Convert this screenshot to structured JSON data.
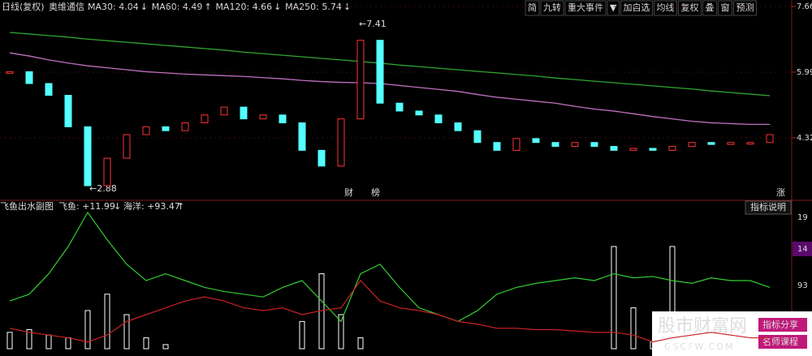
{
  "header": {
    "period": "日线(复权)",
    "stock": "奥维通信",
    "indicators": [
      {
        "text": "MA30: 4.04",
        "arrow": "↓",
        "color": "#ffffff",
        "arrow_color": "#4aa3ff"
      },
      {
        "text": "MA60: 4.49",
        "arrow": "↑",
        "color": "#ffff00",
        "arrow_color": "#ff3333"
      },
      {
        "text": "MA120: 4.66",
        "arrow": "↓",
        "color": "#ff66ff",
        "arrow_color": "#4aa3ff"
      },
      {
        "text": "MA250: 5.74",
        "arrow": "↓",
        "color": "#33cc33",
        "arrow_color": "#4aa3ff"
      }
    ]
  },
  "toolbar": [
    "简",
    "九转",
    "重大事件",
    "▼",
    "加自选",
    "均线",
    "复权",
    "叠",
    "窗",
    "预测"
  ],
  "sub_header": {
    "title": "飞鱼出水副图",
    "fish": "飞鱼: +11.99",
    "fish_arrow": "↓",
    "ocean": "海洋: +93.47",
    "ocean_arrow": "↑",
    "help": "指标说明"
  },
  "sub_axis_labels": [
    "19",
    "14",
    "93"
  ],
  "annotations": {
    "high": "←7.41",
    "low": "←2.88",
    "cai": "财",
    "bang": "榜",
    "zhang": "涨"
  },
  "watermark": {
    "site": "股市财富网",
    "url": "GSCFW.COM",
    "share": "指标分享",
    "course": "名师课程"
  },
  "chart_data": [
    {
      "type": "candlestick",
      "ylim": [
        2.77,
        7.66
      ],
      "yticks": [
        7.66,
        5.99,
        4.32
      ],
      "up_color": "#ff3333",
      "down_color": "#54ffff",
      "values": [
        6.0,
        5.7,
        5.4,
        4.6,
        3.1,
        3.8,
        4.4,
        4.6,
        4.5,
        4.7,
        4.9,
        5.1,
        4.8,
        4.9,
        4.7,
        4.0,
        3.6,
        4.8,
        6.8,
        5.2,
        5.0,
        4.9,
        4.7,
        4.5,
        4.2,
        4.0,
        4.3,
        4.2,
        4.1,
        4.2,
        4.1,
        4.0,
        4.05,
        4.0,
        4.1,
        4.2,
        4.15,
        4.2,
        4.2,
        4.4
      ],
      "series": [
        {
          "color": "#2fa62f",
          "values": [
            7.0,
            6.96,
            6.92,
            6.88,
            6.83,
            6.79,
            6.75,
            6.71,
            6.67,
            6.63,
            6.59,
            6.55,
            6.5,
            6.46,
            6.42,
            6.38,
            6.34,
            6.3,
            6.26,
            6.22,
            6.17,
            6.13,
            6.09,
            6.05,
            6.01,
            5.97,
            5.93,
            5.89,
            5.84,
            5.8,
            5.76,
            5.72,
            5.68,
            5.64,
            5.6,
            5.56,
            5.51,
            5.47,
            5.43,
            5.39
          ]
        },
        {
          "color": "#c070c0",
          "values": [
            6.48,
            6.4,
            6.3,
            6.22,
            6.15,
            6.1,
            6.05,
            6.0,
            5.97,
            5.94,
            5.92,
            5.9,
            5.88,
            5.85,
            5.82,
            5.78,
            5.75,
            5.73,
            5.72,
            5.7,
            5.65,
            5.6,
            5.55,
            5.5,
            5.42,
            5.35,
            5.3,
            5.25,
            5.2,
            5.12,
            5.05,
            5.0,
            4.93,
            4.86,
            4.8,
            4.74,
            4.7,
            4.68,
            4.66,
            4.66
          ]
        }
      ]
    },
    {
      "type": "line",
      "ylim": [
        0,
        100
      ],
      "bar_color": "#ffffff",
      "bars": [
        12,
        14,
        10,
        8,
        28,
        40,
        25,
        8,
        3,
        0,
        0,
        0,
        0,
        0,
        0,
        20,
        55,
        25,
        8,
        0,
        0,
        0,
        0,
        0,
        0,
        0,
        0,
        0,
        0,
        0,
        0,
        75,
        30,
        5,
        75,
        10,
        0,
        0,
        0,
        0
      ],
      "series": [
        {
          "color": "#33cc33",
          "values": [
            35,
            40,
            55,
            75,
            100,
            80,
            62,
            50,
            55,
            50,
            45,
            42,
            40,
            38,
            45,
            50,
            35,
            20,
            55,
            62,
            45,
            30,
            25,
            20,
            28,
            40,
            45,
            48,
            50,
            52,
            50,
            55,
            52,
            53,
            50,
            48,
            52,
            50,
            50,
            45
          ]
        },
        {
          "color": "#cc2222",
          "values": [
            15,
            12,
            10,
            8,
            5,
            10,
            20,
            25,
            30,
            35,
            38,
            35,
            30,
            28,
            30,
            25,
            28,
            30,
            50,
            35,
            30,
            28,
            25,
            20,
            18,
            15,
            15,
            14,
            14,
            13,
            12,
            12,
            10,
            5,
            8,
            10,
            12,
            10,
            8,
            8
          ]
        }
      ]
    }
  ]
}
